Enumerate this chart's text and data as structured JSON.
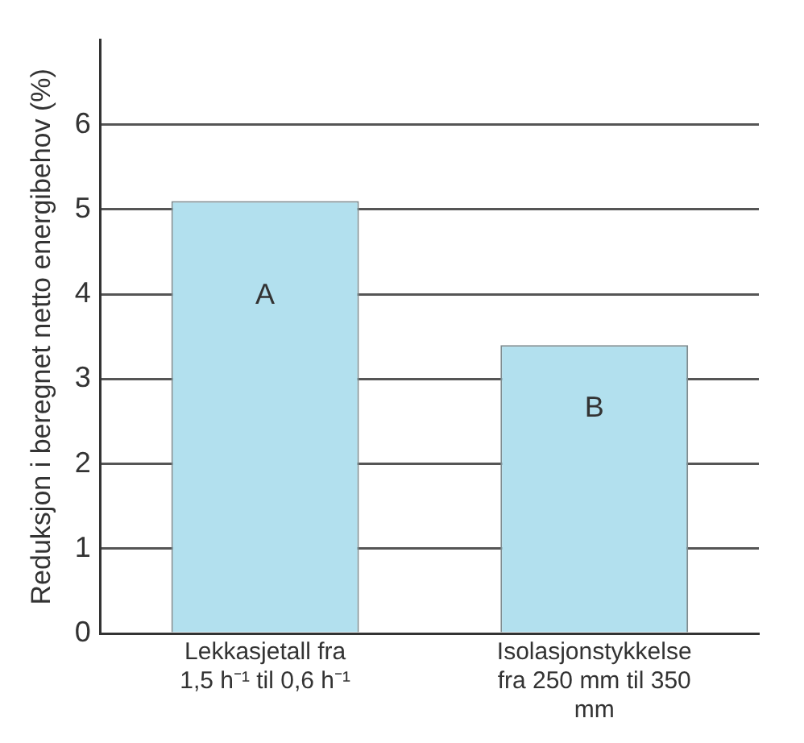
{
  "chart_data": {
    "type": "bar",
    "ylabel": "Reduksjon i beregnet netto energibehov (%)",
    "categories": [
      "Lekkasjetall fra 1,5 h⁻¹ til 0,6 h⁻¹",
      "Isolasjonstykkelse fra 250 mm til 350 mm"
    ],
    "values": [
      5.1,
      3.4
    ],
    "color": "#b2e0ee",
    "ylim": [
      0,
      7
    ],
    "yticks": [
      0,
      1,
      2,
      3,
      4,
      5,
      6
    ],
    "grid": "y",
    "legend": false,
    "annotations": [
      "A",
      "B"
    ]
  }
}
